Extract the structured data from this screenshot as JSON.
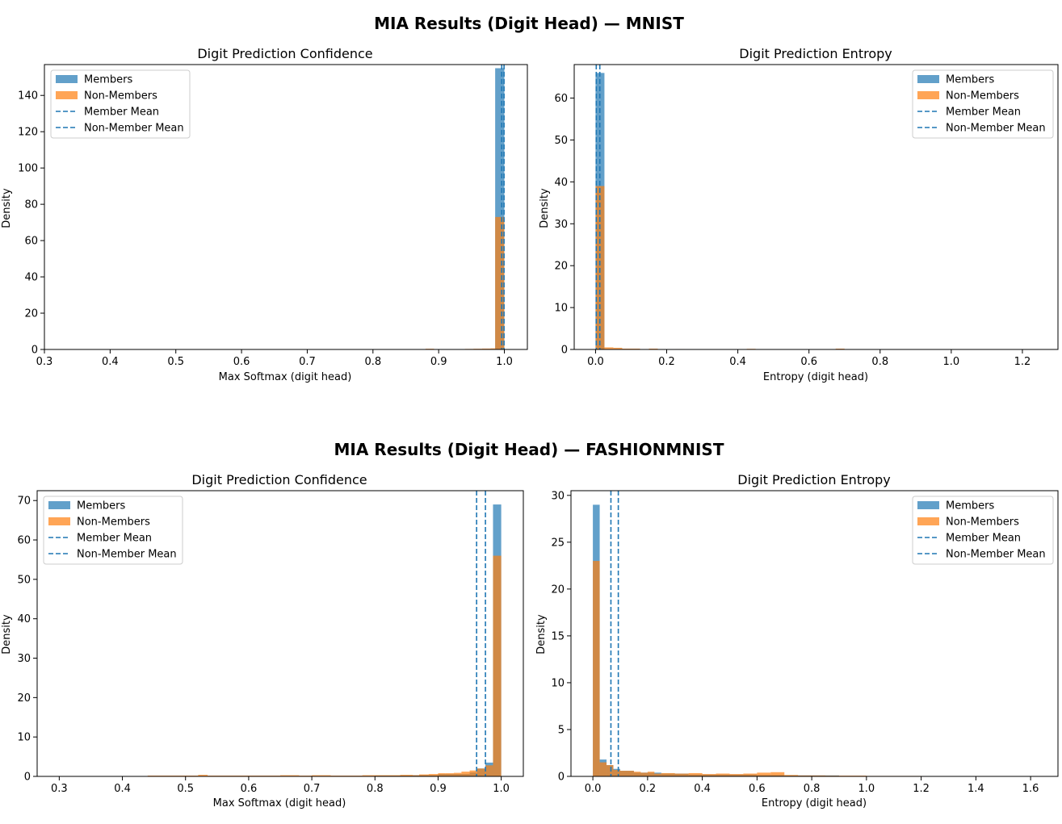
{
  "figures": [
    {
      "suptitle": "MIA Results (Digit Head) — MNIST",
      "panels": [
        "mnist-conf",
        "mnist-ent"
      ]
    },
    {
      "suptitle": "MIA Results (Digit Head) — FASHIONMNIST",
      "panels": [
        "fashion-conf",
        "fashion-ent"
      ]
    }
  ],
  "colors": {
    "members": "#1f77b4",
    "non_members": "#ff7f0e",
    "mean_line": "#1f77b4"
  },
  "legend_labels": [
    "Members",
    "Non-Members",
    "Member Mean",
    "Non-Member Mean"
  ],
  "chart_data": [
    {
      "id": "mnist-conf",
      "type": "bar",
      "title": "Digit Prediction Confidence",
      "xlabel": "Max Softmax (digit head)",
      "ylabel": "Density",
      "xlim": [
        0.3,
        1.035
      ],
      "ylim": [
        0,
        157
      ],
      "xticks": [
        0.3,
        0.4,
        0.5,
        0.6,
        0.7,
        0.8,
        0.9,
        1.0
      ],
      "xtick_labels": [
        "0.3",
        "0.4",
        "0.5",
        "0.6",
        "0.7",
        "0.8",
        "0.9",
        "1.0"
      ],
      "yticks": [
        0,
        20,
        40,
        60,
        80,
        100,
        120,
        140
      ],
      "ytick_labels": [
        "0",
        "20",
        "40",
        "60",
        "80",
        "100",
        "120",
        "140"
      ],
      "legend_position": "upper-left",
      "series": [
        {
          "name": "Members",
          "color": "#1f77b4",
          "alpha": 0.7,
          "bins": [
            [
              0.986,
              1.0,
              155
            ]
          ]
        },
        {
          "name": "Non-Members",
          "color": "#ff7f0e",
          "alpha": 0.7,
          "bins": [
            [
              0.88,
              0.893,
              0.4
            ],
            [
              0.94,
              0.953,
              0.3
            ],
            [
              0.953,
              0.966,
              0.4
            ],
            [
              0.966,
              0.979,
              0.5
            ],
            [
              0.979,
              0.986,
              0.6
            ],
            [
              0.986,
              1.0,
              73
            ]
          ]
        }
      ],
      "mean_lines": [
        {
          "name": "Member Mean",
          "x": 0.9995
        },
        {
          "name": "Non-Member Mean",
          "x": 0.996
        }
      ]
    },
    {
      "id": "mnist-ent",
      "type": "bar",
      "title": "Digit Prediction Entropy",
      "xlabel": "Entropy (digit head)",
      "ylabel": "Density",
      "xlim": [
        -0.06,
        1.3
      ],
      "ylim": [
        0,
        68
      ],
      "xticks": [
        0.0,
        0.2,
        0.4,
        0.6,
        0.8,
        1.0,
        1.2
      ],
      "xtick_labels": [
        "0.0",
        "0.2",
        "0.4",
        "0.6",
        "0.8",
        "1.0",
        "1.2"
      ],
      "yticks": [
        0,
        10,
        20,
        30,
        40,
        50,
        60
      ],
      "ytick_labels": [
        "0",
        "10",
        "20",
        "30",
        "40",
        "50",
        "60"
      ],
      "legend_position": "upper-right",
      "series": [
        {
          "name": "Members",
          "color": "#1f77b4",
          "alpha": 0.7,
          "bins": [
            [
              0.0,
              0.025,
              66
            ]
          ]
        },
        {
          "name": "Non-Members",
          "color": "#ff7f0e",
          "alpha": 0.7,
          "bins": [
            [
              0.0,
              0.025,
              39
            ],
            [
              0.025,
              0.05,
              0.5
            ],
            [
              0.05,
              0.075,
              0.4
            ],
            [
              0.075,
              0.1,
              0.2
            ],
            [
              0.1,
              0.125,
              0.2
            ],
            [
              0.125,
              0.15,
              0.1
            ],
            [
              0.15,
              0.175,
              0.2
            ],
            [
              0.225,
              0.25,
              0.1
            ],
            [
              0.425,
              0.45,
              0.15
            ],
            [
              0.675,
              0.7,
              0.2
            ]
          ]
        }
      ],
      "mean_lines": [
        {
          "name": "Member Mean",
          "x": 0.002
        },
        {
          "name": "Non-Member Mean",
          "x": 0.012
        }
      ]
    },
    {
      "id": "fashion-conf",
      "type": "bar",
      "title": "Digit Prediction Confidence",
      "xlabel": "Max Softmax (digit head)",
      "ylabel": "Density",
      "xlim": [
        0.265,
        1.035
      ],
      "ylim": [
        0,
        72.5
      ],
      "xticks": [
        0.3,
        0.4,
        0.5,
        0.6,
        0.7,
        0.8,
        0.9,
        1.0
      ],
      "xtick_labels": [
        "0.3",
        "0.4",
        "0.5",
        "0.6",
        "0.7",
        "0.8",
        "0.9",
        "1.0"
      ],
      "yticks": [
        0,
        10,
        20,
        30,
        40,
        50,
        60,
        70
      ],
      "ytick_labels": [
        "0",
        "10",
        "20",
        "30",
        "40",
        "50",
        "60",
        "70"
      ],
      "legend_position": "upper-left",
      "series": [
        {
          "name": "Members",
          "color": "#1f77b4",
          "alpha": 0.7,
          "bins": [
            [
              0.6,
              0.67,
              0.1
            ],
            [
              0.8,
              0.86,
              0.2
            ],
            [
              0.86,
              0.9,
              0.3
            ],
            [
              0.9,
              0.95,
              0.6
            ],
            [
              0.95,
              0.962,
              1.0
            ],
            [
              0.962,
              0.975,
              2.0
            ],
            [
              0.975,
              0.987,
              3.5
            ],
            [
              0.987,
              1.0,
              69
            ]
          ]
        },
        {
          "name": "Non-Members",
          "color": "#ff7f0e",
          "alpha": 0.7,
          "bins": [
            [
              0.44,
              0.52,
              0.2
            ],
            [
              0.52,
              0.535,
              0.4
            ],
            [
              0.535,
              0.65,
              0.2
            ],
            [
              0.65,
              0.68,
              0.3
            ],
            [
              0.68,
              0.7,
              0.2
            ],
            [
              0.7,
              0.73,
              0.3
            ],
            [
              0.73,
              0.78,
              0.2
            ],
            [
              0.78,
              0.84,
              0.3
            ],
            [
              0.84,
              0.86,
              0.4
            ],
            [
              0.86,
              0.87,
              0.3
            ],
            [
              0.87,
              0.885,
              0.5
            ],
            [
              0.885,
              0.9,
              0.6
            ],
            [
              0.9,
              0.912,
              0.8
            ],
            [
              0.912,
              0.925,
              0.8
            ],
            [
              0.925,
              0.937,
              0.9
            ],
            [
              0.937,
              0.95,
              1.2
            ],
            [
              0.95,
              0.962,
              1.5
            ],
            [
              0.962,
              0.975,
              2.0
            ],
            [
              0.975,
              0.987,
              2.8
            ],
            [
              0.987,
              1.0,
              56
            ]
          ]
        }
      ],
      "mean_lines": [
        {
          "name": "Member Mean",
          "x": 0.975
        },
        {
          "name": "Non-Member Mean",
          "x": 0.961
        }
      ]
    },
    {
      "id": "fashion-ent",
      "type": "bar",
      "title": "Digit Prediction Entropy",
      "xlabel": "Entropy (digit head)",
      "ylabel": "Density",
      "xlim": [
        -0.08,
        1.7
      ],
      "ylim": [
        0,
        30.5
      ],
      "xticks": [
        0.0,
        0.2,
        0.4,
        0.6,
        0.8,
        1.0,
        1.2,
        1.4,
        1.6
      ],
      "xtick_labels": [
        "0.0",
        "0.2",
        "0.4",
        "0.6",
        "0.8",
        "1.0",
        "1.2",
        "1.4",
        "1.6"
      ],
      "yticks": [
        0,
        5,
        10,
        15,
        20,
        25,
        30
      ],
      "ytick_labels": [
        "0",
        "5",
        "10",
        "15",
        "20",
        "25",
        "30"
      ],
      "legend_position": "upper-right",
      "series": [
        {
          "name": "Members",
          "color": "#1f77b4",
          "alpha": 0.7,
          "bins": [
            [
              0.0,
              0.025,
              29
            ],
            [
              0.025,
              0.05,
              1.8
            ],
            [
              0.05,
              0.075,
              1.2
            ],
            [
              0.075,
              0.1,
              0.8
            ],
            [
              0.1,
              0.15,
              0.6
            ],
            [
              0.15,
              0.25,
              0.4
            ],
            [
              0.25,
              0.35,
              0.3
            ],
            [
              0.35,
              0.5,
              0.2
            ],
            [
              0.5,
              0.6,
              0.2
            ],
            [
              0.6,
              0.7,
              0.15
            ],
            [
              0.7,
              0.9,
              0.1
            ]
          ]
        },
        {
          "name": "Non-Members",
          "color": "#ff7f0e",
          "alpha": 0.7,
          "bins": [
            [
              0.0,
              0.025,
              23
            ],
            [
              0.025,
              0.05,
              1.5
            ],
            [
              0.05,
              0.075,
              1.2
            ],
            [
              0.075,
              0.1,
              0.7
            ],
            [
              0.1,
              0.125,
              0.6
            ],
            [
              0.125,
              0.15,
              0.6
            ],
            [
              0.15,
              0.175,
              0.5
            ],
            [
              0.175,
              0.2,
              0.4
            ],
            [
              0.2,
              0.225,
              0.5
            ],
            [
              0.225,
              0.25,
              0.3
            ],
            [
              0.25,
              0.3,
              0.35
            ],
            [
              0.3,
              0.35,
              0.3
            ],
            [
              0.35,
              0.4,
              0.35
            ],
            [
              0.4,
              0.45,
              0.25
            ],
            [
              0.45,
              0.5,
              0.3
            ],
            [
              0.5,
              0.55,
              0.25
            ],
            [
              0.55,
              0.6,
              0.3
            ],
            [
              0.6,
              0.65,
              0.4
            ],
            [
              0.65,
              0.7,
              0.45
            ],
            [
              0.7,
              0.75,
              0.15
            ],
            [
              0.75,
              0.85,
              0.1
            ],
            [
              0.85,
              1.0,
              0.08
            ],
            [
              1.0,
              1.2,
              0.05
            ]
          ]
        }
      ],
      "mean_lines": [
        {
          "name": "Member Mean",
          "x": 0.066
        },
        {
          "name": "Non-Member Mean",
          "x": 0.093
        }
      ]
    }
  ]
}
